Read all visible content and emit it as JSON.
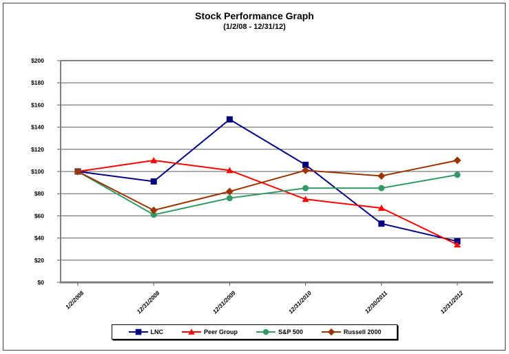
{
  "chart_data": {
    "type": "line",
    "title": "Stock Performance Graph",
    "subtitle": "(1/2/08 - 12/31/12)",
    "categories": [
      "1/2/2008",
      "12/31/2008",
      "12/31/2009",
      "12/31/2010",
      "12/30/2011",
      "12/31/2012"
    ],
    "series": [
      {
        "name": "LNC",
        "color": "#000080",
        "marker": "square",
        "values": [
          100,
          91,
          147,
          106,
          53,
          37
        ]
      },
      {
        "name": "Peer Group",
        "color": "#FF0000",
        "marker": "triangle",
        "values": [
          100,
          110,
          101,
          75,
          67,
          34
        ]
      },
      {
        "name": "S&P 500",
        "color": "#339966",
        "marker": "circle",
        "values": [
          100,
          61,
          76,
          85,
          85,
          97
        ]
      },
      {
        "name": "Russell 2000",
        "color": "#993300",
        "marker": "diamond",
        "values": [
          100,
          65,
          82,
          101,
          96,
          110
        ]
      }
    ],
    "xlabel": "",
    "ylabel": "",
    "ylim": [
      0,
      200
    ],
    "ytick_step": 20,
    "ytick_labels": [
      "$0",
      "$20",
      "$40",
      "$60",
      "$80",
      "$100",
      "$120",
      "$140",
      "$160",
      "$180",
      "$200"
    ],
    "grid": true,
    "legend_position": "bottom",
    "colors": {
      "axis": "#7f7f7f",
      "gridline": "#595959",
      "text": "#000000"
    }
  }
}
